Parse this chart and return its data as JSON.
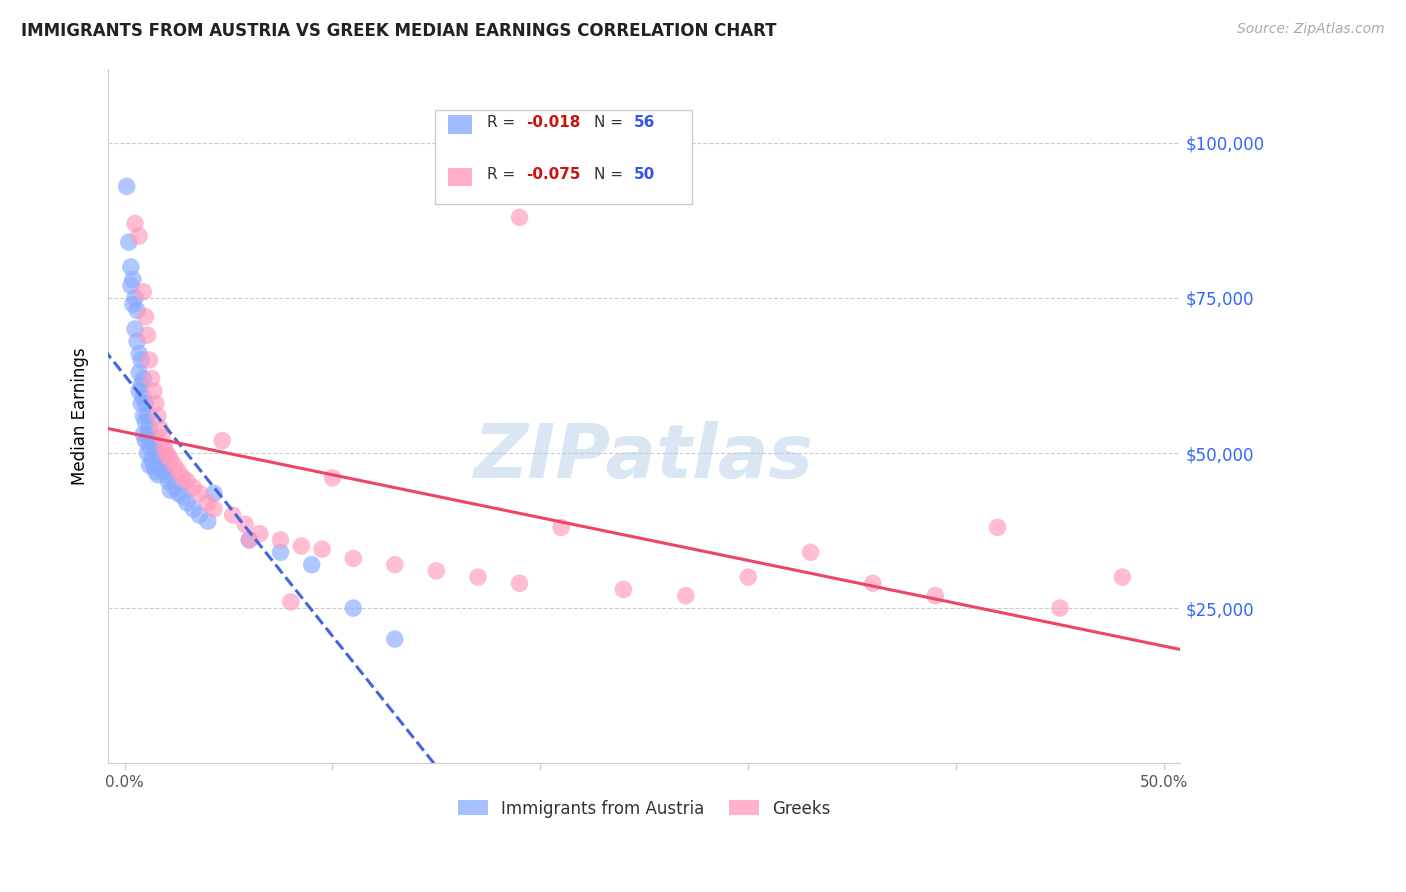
{
  "title": "IMMIGRANTS FROM AUSTRIA VS GREEK MEDIAN EARNINGS CORRELATION CHART",
  "source": "Source: ZipAtlas.com",
  "ylabel": "Median Earnings",
  "legend_label1": "Immigrants from Austria",
  "legend_label2": "Greeks",
  "xlim": [
    0.0,
    0.5
  ],
  "ylim": [
    0,
    110000
  ],
  "watermark": "ZIPatlas",
  "blue_color": "#88aaff",
  "pink_color": "#ff99bb",
  "blue_line_color": "#4466dd",
  "pink_line_color": "#ee4466",
  "right_tick_color": "#3366ff",
  "austria_x": [
    0.001,
    0.002,
    0.003,
    0.003,
    0.004,
    0.004,
    0.005,
    0.005,
    0.006,
    0.006,
    0.007,
    0.007,
    0.007,
    0.008,
    0.008,
    0.008,
    0.009,
    0.009,
    0.009,
    0.009,
    0.01,
    0.01,
    0.01,
    0.011,
    0.011,
    0.011,
    0.012,
    0.012,
    0.012,
    0.013,
    0.013,
    0.014,
    0.014,
    0.015,
    0.015,
    0.016,
    0.016,
    0.017,
    0.018,
    0.019,
    0.02,
    0.021,
    0.022,
    0.024,
    0.026,
    0.028,
    0.03,
    0.033,
    0.036,
    0.04,
    0.043,
    0.06,
    0.075,
    0.09,
    0.11,
    0.13
  ],
  "austria_y": [
    93000,
    84000,
    80000,
    77000,
    78000,
    74000,
    75000,
    70000,
    73000,
    68000,
    66000,
    63000,
    60000,
    65000,
    61000,
    58000,
    62000,
    59000,
    56000,
    53000,
    58000,
    55000,
    52000,
    56000,
    53000,
    50000,
    54000,
    51000,
    48000,
    52000,
    49000,
    51000,
    48000,
    50000,
    47000,
    49500,
    46500,
    48000,
    47500,
    47000,
    46500,
    45500,
    44000,
    44500,
    43500,
    43000,
    42000,
    41000,
    40000,
    39000,
    43500,
    36000,
    34000,
    32000,
    25000,
    20000
  ],
  "greek_x": [
    0.005,
    0.007,
    0.009,
    0.01,
    0.011,
    0.012,
    0.013,
    0.014,
    0.015,
    0.016,
    0.017,
    0.018,
    0.019,
    0.02,
    0.021,
    0.022,
    0.024,
    0.026,
    0.028,
    0.03,
    0.033,
    0.036,
    0.04,
    0.043,
    0.047,
    0.052,
    0.058,
    0.065,
    0.075,
    0.085,
    0.095,
    0.11,
    0.13,
    0.15,
    0.17,
    0.19,
    0.21,
    0.24,
    0.27,
    0.3,
    0.33,
    0.36,
    0.39,
    0.42,
    0.45,
    0.48,
    0.19,
    0.1,
    0.08,
    0.06
  ],
  "greek_y": [
    87000,
    85000,
    76000,
    72000,
    69000,
    65000,
    62000,
    60000,
    58000,
    56000,
    54000,
    52500,
    51000,
    50000,
    49500,
    49000,
    48000,
    47000,
    46000,
    45500,
    44500,
    43500,
    42000,
    41000,
    52000,
    40000,
    38500,
    37000,
    36000,
    35000,
    34500,
    33000,
    32000,
    31000,
    30000,
    29000,
    38000,
    28000,
    27000,
    30000,
    34000,
    29000,
    27000,
    38000,
    25000,
    30000,
    88000,
    46000,
    26000,
    36000
  ]
}
